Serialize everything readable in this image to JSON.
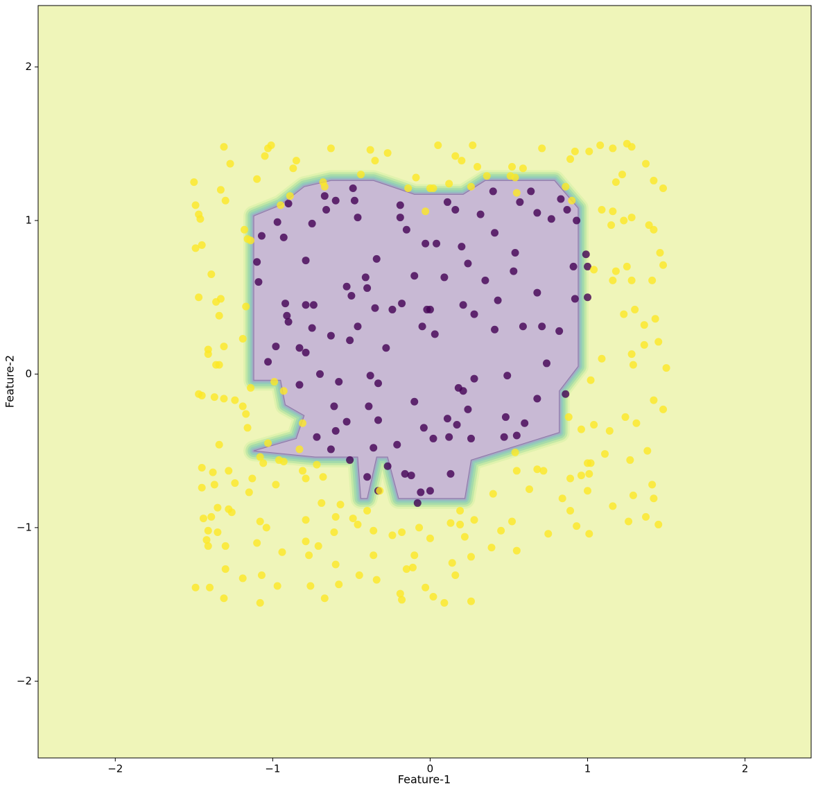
{
  "chart_data": {
    "type": "scatter",
    "xlabel": "Feature-1",
    "ylabel": "Feature-2",
    "xlim": [
      -2.49,
      2.42
    ],
    "ylim": [
      -2.5,
      2.4
    ],
    "xticks": [
      {
        "value": -2,
        "label": "−2"
      },
      {
        "value": -1,
        "label": "−1"
      },
      0,
      1,
      2
    ],
    "yticks": [
      {
        "value": -2,
        "label": "−2"
      },
      {
        "value": -1,
        "label": "−1"
      },
      0,
      1,
      2
    ],
    "background_color": "#eff5b9",
    "region": {
      "color": "#c8b9d4",
      "x": [
        -1.12,
        -0.95,
        -0.8,
        -0.63,
        -0.36,
        -0.1,
        0.21,
        0.35,
        0.79,
        0.94,
        0.94,
        0.82,
        0.82,
        0.26,
        0.22,
        -0.2,
        -0.27,
        -0.34,
        -0.4,
        -0.44,
        -0.46,
        -0.73,
        -1.12,
        -0.85,
        -0.8,
        -0.92,
        -0.95,
        -1.12
      ],
      "y": [
        1.03,
        1.1,
        1.22,
        1.26,
        1.26,
        1.17,
        1.17,
        1.26,
        1.26,
        1.08,
        0.05,
        -0.11,
        -0.38,
        -0.56,
        -0.81,
        -0.81,
        -0.54,
        -0.54,
        -0.81,
        -0.81,
        -0.54,
        -0.54,
        -0.5,
        -0.42,
        -0.27,
        -0.2,
        -0.04,
        -0.04
      ]
    },
    "series": [
      {
        "color": "#440154",
        "x": [
          -0.49,
          -0.67,
          -0.6,
          -0.48,
          -0.19,
          0.11,
          0.4,
          0.57,
          0.64,
          0.83,
          0.87,
          -0.9,
          -0.97,
          -0.75,
          -0.66,
          -0.46,
          -0.19,
          -0.15,
          0.16,
          0.32,
          0.68,
          0.77,
          0.93,
          -1.07,
          -0.93,
          -1.1,
          -0.79,
          -1.09,
          -0.92,
          -0.79,
          -0.74,
          -0.91,
          -0.9,
          -0.98,
          -1.03,
          -0.83,
          -0.79,
          -0.75,
          -0.53,
          -0.5,
          -0.34,
          -0.41,
          -0.4,
          -0.35,
          -0.63,
          -0.51,
          -0.46,
          -0.28,
          -0.24,
          -0.18,
          -0.1,
          -0.03,
          0.04,
          -0.02,
          0.0,
          -0.05,
          0.03,
          0.09,
          0.2,
          0.24,
          0.21,
          0.28,
          0.35,
          0.41,
          0.43,
          0.41,
          0.53,
          0.54,
          0.59,
          0.68,
          0.71,
          0.74,
          0.82,
          0.91,
          0.99,
          1.0,
          1.0,
          0.92,
          -0.04,
          0.11,
          -0.1,
          0.28,
          0.49,
          0.48,
          0.68,
          0.6,
          0.55,
          0.47,
          0.17,
          0.26,
          0.12,
          0.02,
          0.13,
          0.0,
          -0.06,
          -0.08,
          -0.12,
          -0.16,
          -0.21,
          -0.27,
          -0.36,
          -0.4,
          -0.33,
          -0.51,
          -0.39,
          -0.33,
          -0.53,
          -0.61,
          -0.63,
          -0.6,
          -0.58,
          -0.7,
          -0.83,
          -0.72,
          -0.38,
          -0.33,
          0.18,
          0.21,
          0.86,
          0.24
        ],
        "values": [
          1.21,
          1.16,
          1.13,
          1.13,
          1.1,
          1.12,
          1.19,
          1.12,
          1.19,
          1.14,
          1.07,
          1.11,
          0.99,
          0.98,
          1.07,
          1.02,
          1.02,
          0.94,
          1.07,
          1.04,
          1.05,
          1.01,
          1.0,
          0.9,
          0.89,
          0.73,
          0.74,
          0.6,
          0.46,
          0.45,
          0.45,
          0.38,
          0.34,
          0.18,
          0.08,
          0.17,
          0.14,
          0.3,
          0.57,
          0.51,
          0.75,
          0.63,
          0.56,
          0.43,
          0.25,
          0.22,
          0.31,
          0.17,
          0.42,
          0.46,
          0.64,
          0.85,
          0.85,
          0.42,
          0.42,
          0.31,
          0.26,
          0.63,
          0.83,
          0.72,
          0.45,
          0.39,
          0.61,
          0.92,
          0.48,
          0.29,
          0.67,
          0.79,
          0.31,
          0.53,
          0.31,
          0.07,
          0.28,
          0.7,
          0.78,
          0.7,
          0.5,
          0.49,
          -0.35,
          -0.29,
          -0.18,
          -0.03,
          -0.01,
          -0.28,
          -0.16,
          -0.32,
          -0.4,
          -0.41,
          -0.33,
          -0.42,
          -0.41,
          -0.42,
          -0.65,
          -0.76,
          -0.77,
          -0.84,
          -0.66,
          -0.65,
          -0.46,
          -0.6,
          -0.48,
          -0.67,
          -0.76,
          -0.56,
          -0.21,
          -0.3,
          -0.31,
          -0.21,
          -0.49,
          -0.37,
          -0.05,
          0.0,
          -0.07,
          -0.41,
          -0.01,
          -0.06,
          -0.09,
          -0.11,
          -0.13,
          -0.23
        ]
      },
      {
        "color": "#fde725",
        "x": [
          -1.5,
          -1.49,
          -1.47,
          -1.46,
          -1.49,
          -1.45,
          -1.31,
          -1.27,
          -1.33,
          -1.3,
          -1.1,
          -1.05,
          -1.03,
          -1.01,
          -0.87,
          -0.85,
          -0.68,
          -0.63,
          -0.44,
          -0.38,
          -0.35,
          -0.27,
          -0.09,
          0.05,
          0.16,
          0.2,
          0.27,
          0.3,
          0.36,
          0.52,
          0.59,
          0.71,
          0.89,
          0.92,
          1.01,
          1.08,
          1.16,
          1.25,
          1.28,
          1.37,
          1.22,
          1.42,
          1.48,
          1.18,
          1.09,
          1.16,
          1.23,
          1.28,
          1.15,
          1.39,
          1.42,
          1.46,
          1.48,
          1.18,
          1.25,
          1.28,
          1.41,
          1.16,
          1.43,
          1.3,
          1.23,
          1.36,
          1.45,
          1.36,
          1.28,
          1.09,
          1.29,
          1.5,
          1.02,
          1.42,
          1.48,
          1.24,
          1.31,
          1.04,
          1.14,
          0.96,
          0.88,
          1.27,
          1.11,
          1.38,
          1.0,
          1.02,
          1.01,
          0.96,
          0.89,
          1.0,
          1.16,
          1.29,
          1.41,
          1.42,
          1.45,
          1.37,
          1.26,
          1.01,
          0.93,
          0.75,
          0.84,
          0.89,
          0.68,
          0.72,
          0.55,
          0.54,
          0.63,
          0.4,
          0.52,
          0.55,
          0.45,
          0.39,
          0.26,
          0.16,
          0.14,
          0.26,
          0.09,
          0.02,
          -0.03,
          -0.11,
          -0.18,
          -0.19,
          -0.15,
          -0.1,
          -0.36,
          -0.34,
          -0.45,
          -0.6,
          -0.58,
          -0.76,
          -0.67,
          -0.77,
          -0.79,
          -0.71,
          -0.94,
          -1.07,
          -1.08,
          -0.97,
          -1.19,
          -1.3,
          -1.31,
          -1.4,
          -1.49,
          -1.42,
          -1.41,
          -1.3,
          -1.35,
          -1.41,
          -1.44,
          -1.39,
          -1.35,
          -1.28,
          -1.26,
          -1.45,
          -1.45,
          -1.37,
          -1.24,
          -1.28,
          -1.38,
          -1.34,
          -1.47,
          -1.45,
          -1.37,
          -1.31,
          -1.24,
          -1.19,
          -1.17,
          -1.16,
          -1.41,
          -1.41,
          -1.36,
          -1.34,
          -1.31,
          -1.36,
          -1.33,
          -1.34,
          -1.47,
          -1.39,
          -1.18,
          -1.16,
          -1.14,
          -1.19,
          -1.17,
          -1.14,
          -0.99,
          -1.03,
          -1.08,
          -1.06,
          -0.98,
          -1.13,
          -1.15,
          -1.08,
          -1.04,
          -1.1,
          -0.96,
          -0.93,
          -0.83,
          -0.81,
          -0.81,
          -0.79,
          -0.68,
          -0.69,
          -0.79,
          -0.6,
          -0.57,
          -0.49,
          -0.46,
          -0.61,
          -0.4,
          -0.36,
          -0.32,
          -0.24,
          -0.18,
          -0.07,
          0.0,
          0.13,
          0.19,
          0.19,
          0.28,
          0.22,
          -0.72,
          -0.93,
          -0.03,
          -0.14,
          0.0,
          0.02,
          0.12,
          0.26,
          0.51,
          0.54,
          0.55,
          0.86,
          0.9,
          -0.67,
          -0.89,
          -0.95,
          1.04
        ],
        "values": [
          1.25,
          1.1,
          1.04,
          1.01,
          0.82,
          0.84,
          1.48,
          1.37,
          1.2,
          1.13,
          1.27,
          1.42,
          1.47,
          1.49,
          1.34,
          1.39,
          1.25,
          1.47,
          1.3,
          1.46,
          1.39,
          1.44,
          1.28,
          1.49,
          1.42,
          1.39,
          1.49,
          1.35,
          1.29,
          1.35,
          1.34,
          1.47,
          1.4,
          1.45,
          1.45,
          1.49,
          1.47,
          1.5,
          1.48,
          1.37,
          1.3,
          1.26,
          1.21,
          1.25,
          1.07,
          1.06,
          1.0,
          1.02,
          0.97,
          0.97,
          0.94,
          0.79,
          0.71,
          0.67,
          0.7,
          0.61,
          0.61,
          0.61,
          0.36,
          0.42,
          0.39,
          0.32,
          0.21,
          0.19,
          0.13,
          0.1,
          0.06,
          0.04,
          -0.04,
          -0.17,
          -0.23,
          -0.28,
          -0.32,
          -0.33,
          -0.37,
          -0.36,
          -0.28,
          -0.56,
          -0.52,
          -0.5,
          -0.58,
          -0.58,
          -0.65,
          -0.66,
          -0.68,
          -0.76,
          -0.86,
          -0.79,
          -0.72,
          -0.81,
          -0.98,
          -0.93,
          -0.96,
          -1.04,
          -0.99,
          -1.04,
          -0.81,
          -0.89,
          -0.62,
          -0.63,
          -0.63,
          -0.51,
          -0.75,
          -0.78,
          -0.96,
          -1.15,
          -1.02,
          -1.13,
          -1.19,
          -1.31,
          -1.23,
          -1.48,
          -1.49,
          -1.45,
          -1.39,
          -1.26,
          -1.47,
          -1.43,
          -1.27,
          -1.18,
          -1.18,
          -1.34,
          -1.31,
          -1.24,
          -1.37,
          -1.38,
          -1.46,
          -1.18,
          -1.09,
          -1.12,
          -1.16,
          -1.31,
          -1.49,
          -1.38,
          -1.33,
          -1.27,
          -1.46,
          -1.39,
          -1.39,
          -1.08,
          -1.12,
          -1.12,
          -1.03,
          -1.02,
          -0.94,
          -0.93,
          -0.87,
          -0.88,
          -0.9,
          -0.61,
          -0.74,
          -0.72,
          -0.71,
          -0.63,
          -0.64,
          -0.46,
          -0.13,
          -0.14,
          -0.15,
          -0.16,
          -0.17,
          -0.21,
          -0.26,
          -0.35,
          0.16,
          0.13,
          0.06,
          0.06,
          0.18,
          0.47,
          0.49,
          0.38,
          0.5,
          0.65,
          0.94,
          0.88,
          0.87,
          0.23,
          0.44,
          -0.09,
          -0.05,
          -0.45,
          -0.54,
          -0.58,
          -0.72,
          -0.68,
          -0.77,
          -0.96,
          -1.0,
          -1.1,
          -0.56,
          -0.57,
          -0.49,
          -0.32,
          -0.63,
          -0.68,
          -0.67,
          -0.84,
          -0.95,
          -0.93,
          -0.85,
          -0.94,
          -0.98,
          -1.03,
          -0.89,
          -1.02,
          -0.76,
          -1.05,
          -1.03,
          -1.0,
          -1.07,
          -0.97,
          -0.98,
          -0.89,
          -0.95,
          -1.06,
          -0.59,
          -0.11,
          1.06,
          1.21,
          1.21,
          1.21,
          1.24,
          1.22,
          1.29,
          1.28,
          1.18,
          1.22,
          1.13,
          1.22,
          1.16,
          1.1,
          0.68
        ]
      }
    ]
  }
}
